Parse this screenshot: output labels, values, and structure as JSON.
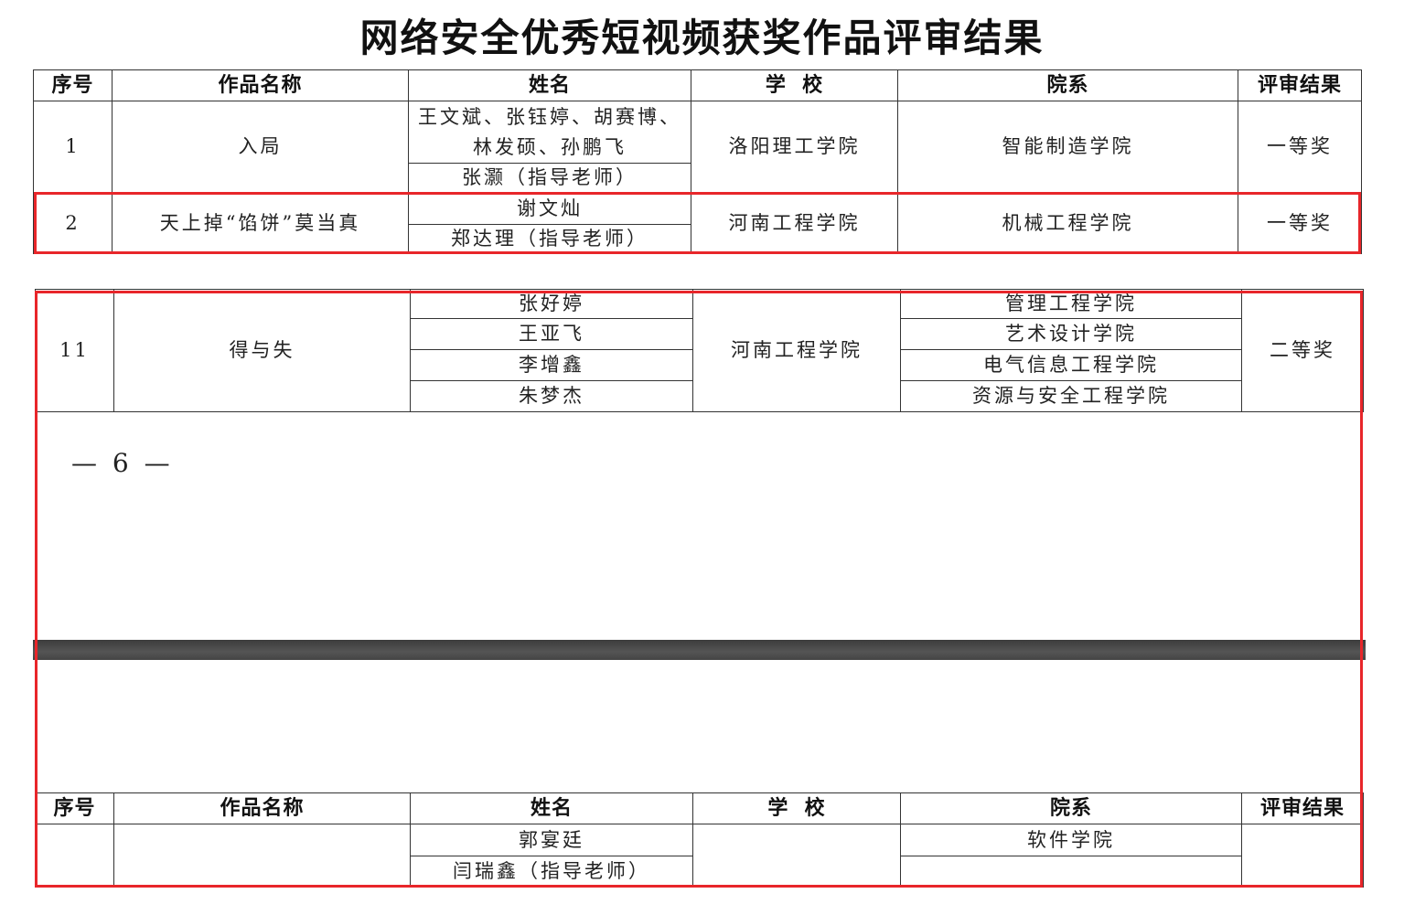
{
  "title": "网络安全优秀短视频获奖作品评审结果",
  "headers": {
    "no": "序号",
    "work": "作品名称",
    "name": "姓名",
    "school": "学  校",
    "dept": "院系",
    "result": "评审结果"
  },
  "rows": [
    {
      "no": "1",
      "work": "入局",
      "names": [
        "王文斌、张钰婷、胡赛博、林发硕、孙鹏飞",
        "张灏（指导老师）"
      ],
      "school": "洛阳理工学院",
      "depts": [
        "智能制造学院"
      ],
      "result": "一等奖"
    },
    {
      "no": "2",
      "work": "天上掉“馅饼”莫当真",
      "names": [
        "谢文灿",
        "郑达理（指导老师）"
      ],
      "school": "河南工程学院",
      "depts": [
        "机械工程学院"
      ],
      "result": "一等奖"
    },
    {
      "no": "11",
      "work": "得与失",
      "names": [
        "张好婷",
        "王亚飞",
        "李增鑫",
        "朱梦杰"
      ],
      "school": "河南工程学院",
      "depts": [
        "管理工程学院",
        "艺术设计学院",
        "电气信息工程学院",
        "资源与安全工程学院"
      ],
      "result": "二等奖"
    },
    {
      "no": "",
      "work": "",
      "names": [
        "郭宴廷",
        "闫瑞鑫（指导老师）"
      ],
      "school": "",
      "depts": [
        "软件学院",
        ""
      ],
      "result": ""
    }
  ],
  "page_number": "— 6 —",
  "colors": {
    "highlight": "#e8262a",
    "page_divider": "#444444"
  }
}
